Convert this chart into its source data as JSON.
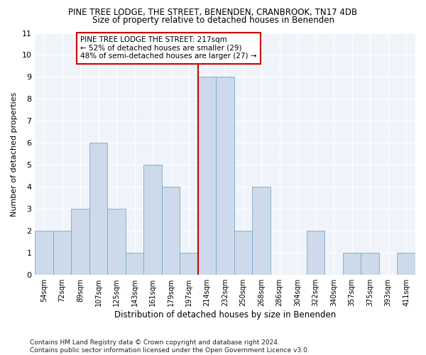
{
  "title": "PINE TREE LODGE, THE STREET, BENENDEN, CRANBROOK, TN17 4DB",
  "subtitle": "Size of property relative to detached houses in Benenden",
  "xlabel": "Distribution of detached houses by size in Benenden",
  "ylabel": "Number of detached properties",
  "bin_labels": [
    "54sqm",
    "72sqm",
    "89sqm",
    "107sqm",
    "125sqm",
    "143sqm",
    "161sqm",
    "179sqm",
    "197sqm",
    "214sqm",
    "232sqm",
    "250sqm",
    "268sqm",
    "286sqm",
    "304sqm",
    "322sqm",
    "340sqm",
    "357sqm",
    "375sqm",
    "393sqm",
    "411sqm"
  ],
  "bar_heights": [
    2,
    2,
    3,
    6,
    3,
    1,
    5,
    4,
    1,
    9,
    9,
    2,
    4,
    0,
    0,
    2,
    0,
    1,
    1,
    0,
    1
  ],
  "bar_color": "#ccdaeb",
  "bar_edgecolor": "#7aaac8",
  "vline_x_index": 9,
  "vline_color": "#cc0000",
  "annotation_text": "PINE TREE LODGE THE STREET: 217sqm\n← 52% of detached houses are smaller (29)\n48% of semi-detached houses are larger (27) →",
  "annotation_box_color": "#ffffff",
  "annotation_box_edgecolor": "#cc0000",
  "ylim": [
    0,
    11
  ],
  "yticks": [
    0,
    1,
    2,
    3,
    4,
    5,
    6,
    7,
    8,
    9,
    10,
    11
  ],
  "fig_background_color": "#ffffff",
  "plot_background_color": "#f0f4fa",
  "grid_color": "#ffffff",
  "footer_text": "Contains HM Land Registry data © Crown copyright and database right 2024.\nContains public sector information licensed under the Open Government Licence v3.0.",
  "title_fontsize": 8.5,
  "subtitle_fontsize": 8.5,
  "annotation_fontsize": 7.5,
  "tick_label_fontsize": 7,
  "xlabel_fontsize": 8.5,
  "ylabel_fontsize": 8.0,
  "footer_fontsize": 6.5
}
